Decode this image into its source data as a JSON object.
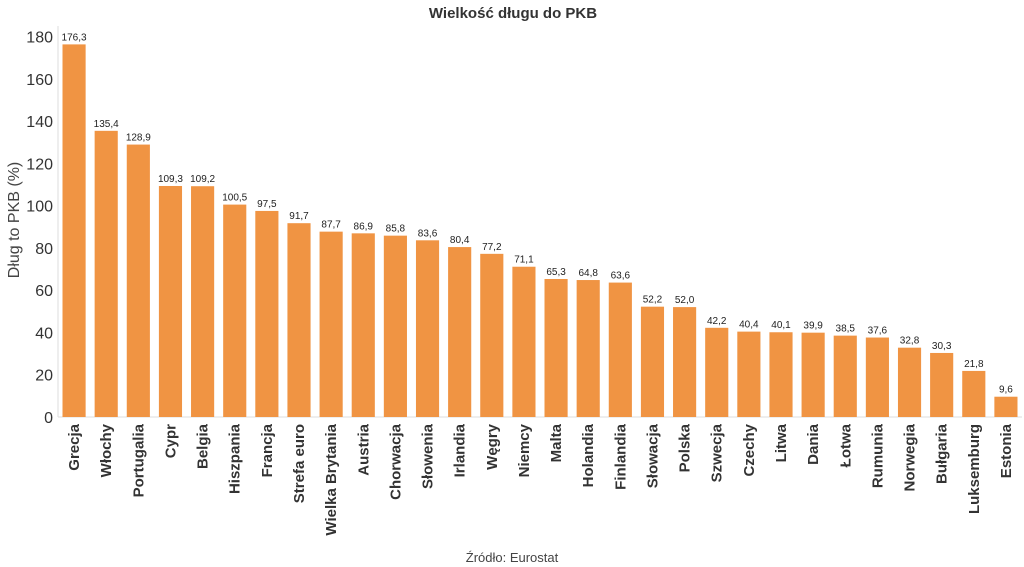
{
  "chart_data": {
    "type": "bar",
    "title": "Wielkość długu do PKB",
    "xlabel": "",
    "ylabel": "Dług to PKB (%)",
    "ylim": [
      0,
      185
    ],
    "yticks": [
      0,
      20,
      40,
      60,
      80,
      100,
      120,
      140,
      160,
      180
    ],
    "grid": false,
    "color": "#F09443",
    "source": "Źródło: Eurostat",
    "categories": [
      "Grecja",
      "Włochy",
      "Portugalia",
      "Cypr",
      "Belgia",
      "Hiszpania",
      "Francja",
      "Strefa euro",
      "Wielka Brytania",
      "Austria",
      "Chorwacja",
      "Słowenia",
      "Irlandia",
      "Węgry",
      "Niemcy",
      "Malta",
      "Holandia",
      "Finlandia",
      "Słowacja",
      "Polska",
      "Szwecja",
      "Czechy",
      "Litwa",
      "Dania",
      "Łotwa",
      "Rumunia",
      "Norwegia",
      "Bułgaria",
      "Luksemburg",
      "Estonia"
    ],
    "values": [
      176.3,
      135.4,
      128.9,
      109.3,
      109.2,
      100.5,
      97.5,
      91.7,
      87.7,
      86.9,
      85.8,
      83.6,
      80.4,
      77.2,
      71.1,
      65.3,
      64.8,
      63.6,
      52.2,
      52.0,
      42.2,
      40.4,
      40.1,
      39.9,
      38.5,
      37.6,
      32.8,
      30.3,
      21.8,
      9.6
    ],
    "labels": [
      "176,3",
      "135,4",
      "128,9",
      "109,3",
      "109,2",
      "100,5",
      "97,5",
      "91,7",
      "87,7",
      "86,9",
      "85,8",
      "83,6",
      "80,4",
      "77,2",
      "71,1",
      "65,3",
      "64,8",
      "63,6",
      "52,2",
      "52,0",
      "42,2",
      "40,4",
      "40,1",
      "39,9",
      "38,5",
      "37,6",
      "32,8",
      "30,3",
      "21,8",
      "9,6"
    ]
  }
}
